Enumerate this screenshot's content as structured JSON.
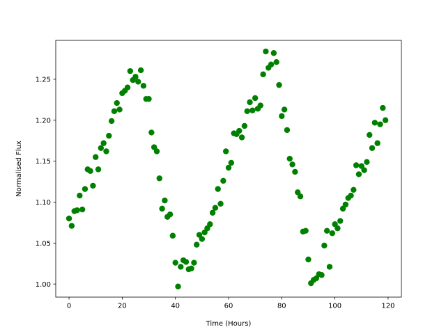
{
  "chart_data": {
    "type": "scatter",
    "title": "",
    "xlabel": "Time (Hours)",
    "ylabel": "Normalised Flux",
    "xlim": [
      -5,
      125
    ],
    "ylim": [
      0.984,
      1.2975
    ],
    "xticks": [
      0,
      20,
      40,
      60,
      80,
      100,
      120
    ],
    "xtick_labels": [
      "0",
      "20",
      "40",
      "60",
      "80",
      "100",
      "120"
    ],
    "yticks": [
      1.0,
      1.05,
      1.1,
      1.15,
      1.2,
      1.25
    ],
    "ytick_labels": [
      "1.00",
      "1.05",
      "1.10",
      "1.15",
      "1.20",
      "1.25"
    ],
    "grid": false,
    "marker_color": "#008000",
    "series": [
      {
        "x": [
          0,
          1,
          2,
          3,
          4,
          5,
          6,
          7,
          8,
          9,
          10,
          11,
          12,
          13,
          14,
          15,
          16,
          17,
          18,
          19,
          20,
          21,
          22,
          23,
          24,
          25,
          26,
          27,
          28,
          29,
          30,
          31,
          32,
          33,
          34,
          35,
          36,
          37,
          38,
          39,
          40,
          41,
          42,
          43,
          44,
          45,
          46,
          47,
          48,
          49,
          50,
          51,
          52,
          53,
          54,
          55,
          56,
          57,
          58,
          59,
          60,
          61,
          62,
          63,
          64,
          65,
          66,
          67,
          68,
          69,
          70,
          71,
          72,
          73,
          74,
          75,
          76,
          77,
          78,
          79,
          80,
          81,
          82,
          83,
          84,
          85,
          86,
          87,
          88,
          89,
          90,
          91,
          92,
          93,
          94,
          95,
          96,
          97,
          98,
          99,
          100,
          101,
          102,
          103,
          104,
          105,
          106,
          107,
          108,
          109,
          110,
          111,
          112,
          113,
          114,
          115,
          116,
          117,
          118,
          119
        ],
        "y": [
          1.08,
          1.071,
          1.089,
          1.09,
          1.108,
          1.091,
          1.116,
          1.14,
          1.138,
          1.12,
          1.155,
          1.14,
          1.166,
          1.172,
          1.162,
          1.181,
          1.199,
          1.211,
          1.221,
          1.213,
          1.233,
          1.236,
          1.24,
          1.26,
          1.249,
          1.253,
          1.247,
          1.261,
          1.242,
          1.226,
          1.226,
          1.185,
          1.167,
          1.162,
          1.129,
          1.092,
          1.102,
          1.082,
          1.085,
          1.059,
          1.026,
          0.997,
          1.021,
          1.029,
          1.027,
          1.018,
          1.019,
          1.026,
          1.048,
          1.06,
          1.055,
          1.063,
          1.068,
          1.073,
          1.087,
          1.093,
          1.116,
          1.098,
          1.126,
          1.162,
          1.142,
          1.148,
          1.184,
          1.183,
          1.187,
          1.179,
          1.193,
          1.211,
          1.222,
          1.212,
          1.227,
          1.214,
          1.218,
          1.256,
          1.284,
          1.264,
          1.268,
          1.282,
          1.271,
          1.243,
          1.205,
          1.213,
          1.188,
          1.153,
          1.146,
          1.137,
          1.112,
          1.107,
          1.064,
          1.065,
          1.03,
          1.001,
          1.005,
          1.007,
          1.012,
          1.011,
          1.047,
          1.065,
          1.021,
          1.062,
          1.073,
          1.068,
          1.077,
          1.092,
          1.097,
          1.105,
          1.108,
          1.115,
          1.145,
          1.134,
          1.144,
          1.139,
          1.149,
          1.182,
          1.166,
          1.197,
          1.172,
          1.195,
          1.215,
          1.2
        ]
      }
    ]
  }
}
